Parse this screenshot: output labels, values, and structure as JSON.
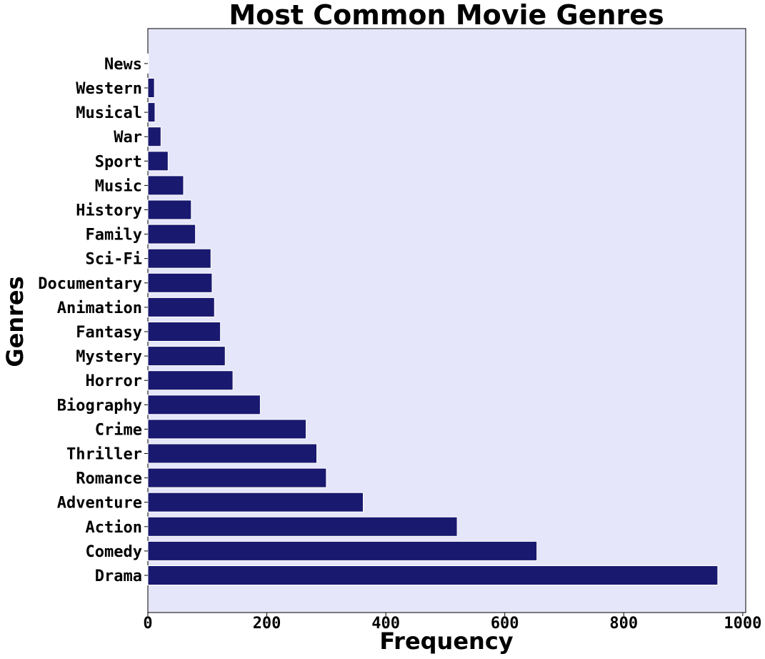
{
  "chart_data": {
    "type": "bar",
    "orientation": "horizontal",
    "title": "Most Common Movie Genres",
    "xlabel": "Frequency",
    "ylabel": "Genres",
    "categories": [
      "Drama",
      "Comedy",
      "Action",
      "Adventure",
      "Romance",
      "Thriller",
      "Crime",
      "Biography",
      "Horror",
      "Mystery",
      "Fantasy",
      "Animation",
      "Documentary",
      "Sci-Fi",
      "Family",
      "History",
      "Music",
      "Sport",
      "War",
      "Musical",
      "Western",
      "News"
    ],
    "values": [
      958,
      654,
      520,
      362,
      300,
      284,
      266,
      189,
      143,
      130,
      122,
      112,
      108,
      106,
      80,
      73,
      60,
      34,
      22,
      12,
      11,
      1
    ],
    "xlim": [
      0,
      1005
    ],
    "xticks": [
      "0",
      "200",
      "400",
      "600",
      "800",
      "1000"
    ],
    "xtick_values": [
      0,
      200,
      400,
      600,
      800,
      1000
    ],
    "grid": false,
    "colors": {
      "bar": "#191970",
      "plot_background": "#E6E6FA",
      "axes_edge": "#000000"
    }
  }
}
